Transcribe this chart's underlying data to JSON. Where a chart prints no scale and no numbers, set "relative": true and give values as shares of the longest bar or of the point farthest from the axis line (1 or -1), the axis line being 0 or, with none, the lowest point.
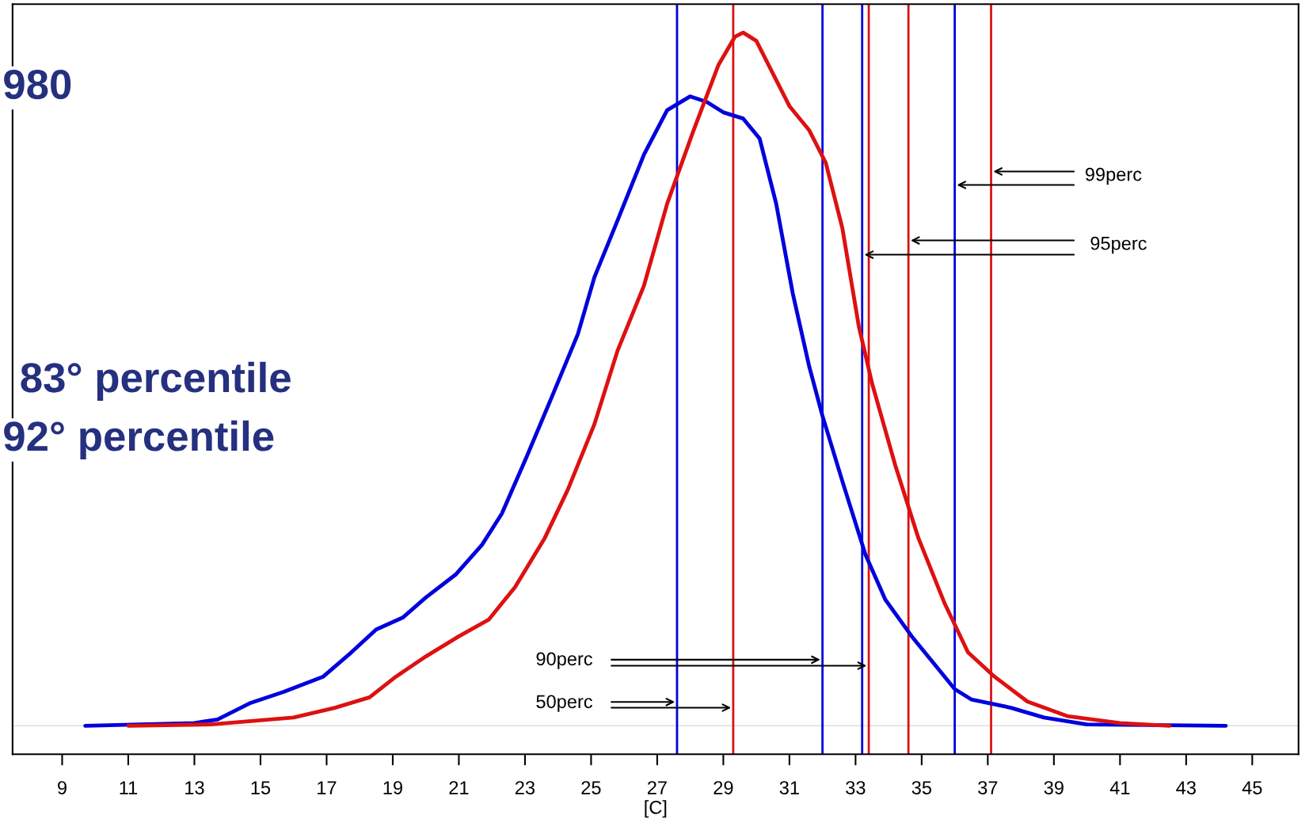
{
  "chart_data": {
    "type": "line",
    "relative": true,
    "xlabel": "[C]",
    "xlim": [
      7.5,
      46.4
    ],
    "xticks": [
      9,
      11,
      13,
      15,
      17,
      19,
      21,
      23,
      25,
      27,
      29,
      31,
      33,
      35,
      37,
      39,
      41,
      43,
      45
    ],
    "series": [
      {
        "color": "#0000dd",
        "x": [
          9.7,
          13.0,
          13.7,
          14.7,
          15.7,
          16.9,
          17.75,
          18.5,
          19.3,
          20.0,
          20.9,
          21.7,
          22.3,
          23.05,
          23.8,
          24.6,
          25.1,
          25.8,
          26.6,
          27.3,
          28.0,
          28.5,
          29.0,
          29.6,
          30.1,
          30.6,
          31.1,
          31.6,
          32.0,
          32.6,
          33.3,
          33.9,
          34.7,
          35.4,
          36.0,
          36.5,
          37.7,
          38.7,
          40.0,
          44.2
        ],
        "values": [
          0,
          0.004,
          0.009,
          0.033,
          0.049,
          0.071,
          0.106,
          0.139,
          0.156,
          0.185,
          0.218,
          0.261,
          0.306,
          0.388,
          0.473,
          0.565,
          0.647,
          0.729,
          0.824,
          0.888,
          0.908,
          0.9,
          0.885,
          0.876,
          0.847,
          0.753,
          0.624,
          0.518,
          0.447,
          0.353,
          0.247,
          0.182,
          0.129,
          0.088,
          0.053,
          0.038,
          0.026,
          0.012,
          0.002,
          0
        ]
      },
      {
        "color": "#dd1111",
        "x": [
          11.0,
          13.5,
          15.0,
          16.0,
          17.25,
          18.3,
          19.1,
          20.0,
          21.0,
          21.9,
          22.7,
          23.6,
          24.3,
          25.1,
          25.8,
          26.6,
          27.3,
          28.1,
          28.85,
          29.35,
          29.6,
          30.0,
          30.5,
          31.0,
          31.6,
          32.1,
          32.6,
          33.1,
          33.5,
          34.2,
          34.9,
          35.7,
          36.4,
          37.2,
          38.2,
          39.4,
          41.0,
          42.5
        ],
        "values": [
          0,
          0.002,
          0.008,
          0.012,
          0.026,
          0.041,
          0.071,
          0.1,
          0.129,
          0.153,
          0.2,
          0.271,
          0.341,
          0.435,
          0.541,
          0.635,
          0.753,
          0.859,
          0.953,
          0.994,
          1.0,
          0.988,
          0.941,
          0.894,
          0.859,
          0.812,
          0.718,
          0.576,
          0.494,
          0.376,
          0.271,
          0.176,
          0.106,
          0.071,
          0.035,
          0.014,
          0.004,
          0
        ]
      }
    ],
    "ref_lines": [
      {
        "axis": "x",
        "value": 27.6,
        "color": "#0000dd"
      },
      {
        "axis": "x",
        "value": 29.3,
        "color": "#dd1111"
      },
      {
        "axis": "x",
        "value": 32.0,
        "color": "#0000dd"
      },
      {
        "axis": "x",
        "value": 33.4,
        "color": "#dd1111"
      },
      {
        "axis": "x",
        "value": 33.2,
        "color": "#0000dd"
      },
      {
        "axis": "x",
        "value": 34.6,
        "color": "#dd1111"
      },
      {
        "axis": "x",
        "value": 36.0,
        "color": "#0000dd"
      },
      {
        "axis": "x",
        "value": 37.1,
        "color": "#dd1111"
      }
    ],
    "annotations": [
      "50perc",
      "90perc",
      "95perc",
      "99perc",
      "980",
      "83° percentile",
      "92° percentile"
    ],
    "grid": false,
    "legend": false
  }
}
